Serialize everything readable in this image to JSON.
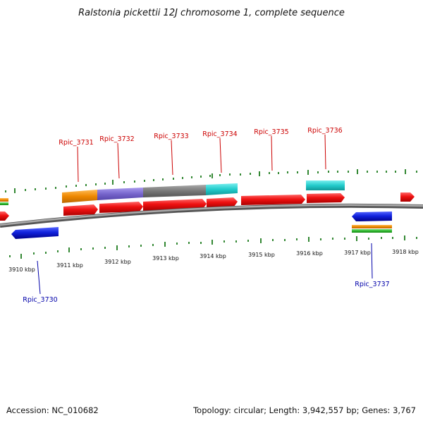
{
  "title": "Ralstonia pickettii 12J chromosome 1, complete sequence",
  "accession_label": "Accession: NC_010682",
  "topology_label": "Topology: circular; Length: 3,942,557 bp; Genes: 3,767",
  "scale": {
    "ticks": [
      "3910 kbp",
      "3911 kbp",
      "3912 kbp",
      "3913 kbp",
      "3914 kbp",
      "3915 kbp",
      "3916 kbp",
      "3917 kbp",
      "3918 kbp"
    ]
  },
  "labels": {
    "forward_color": "#cc0000",
    "reverse_color": "#0000aa"
  },
  "genes": [
    {
      "id": "Rpic_3730",
      "strand": "reverse"
    },
    {
      "id": "Rpic_3731",
      "strand": "forward"
    },
    {
      "id": "Rpic_3732",
      "strand": "forward"
    },
    {
      "id": "Rpic_3733",
      "strand": "forward"
    },
    {
      "id": "Rpic_3734",
      "strand": "forward"
    },
    {
      "id": "Rpic_3735",
      "strand": "forward"
    },
    {
      "id": "Rpic_3736",
      "strand": "forward"
    },
    {
      "id": "Rpic_3737",
      "strand": "reverse"
    }
  ],
  "colors": {
    "forward_cds": "#ee1111",
    "reverse_cds": "#1122dd",
    "orange": "#ee8800",
    "purple": "#7766cc",
    "gray_band": "#777777",
    "cyan": "#22cccc",
    "green": "#33bb33",
    "backbone": "#888888",
    "tick_green": "#338833"
  }
}
